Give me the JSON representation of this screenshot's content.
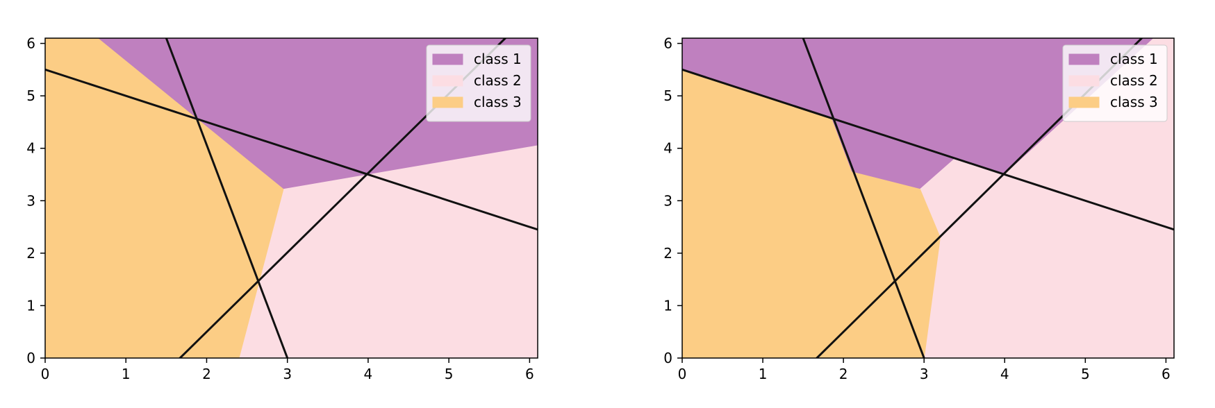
{
  "colors": {
    "class_1": "#bf80bf",
    "class_2": "#fcdde3",
    "class_3": "#fccd85",
    "line": "#111111"
  },
  "chart_data": [
    {
      "type": "area",
      "xlim": [
        0,
        6.1
      ],
      "ylim": [
        0,
        6.1
      ],
      "x_ticks": [
        "0",
        "1",
        "2",
        "3",
        "4",
        "5",
        "6"
      ],
      "y_ticks": [
        "0",
        "1",
        "2",
        "3",
        "4",
        "5",
        "6"
      ],
      "grid": false,
      "legend_position": "top-right",
      "legend": [
        "class 1",
        "class 2",
        "class 3"
      ],
      "regions": [
        {
          "name": "class 1",
          "polygon": [
            [
              0.65,
              6.1
            ],
            [
              6.1,
              6.1
            ],
            [
              6.1,
              4.05
            ],
            [
              2.95,
              3.22
            ]
          ]
        },
        {
          "name": "class 2",
          "polygon": [
            [
              2.95,
              3.22
            ],
            [
              6.1,
              4.05
            ],
            [
              6.1,
              0
            ],
            [
              2.4,
              0
            ]
          ]
        },
        {
          "name": "class 3",
          "polygon": [
            [
              0,
              0
            ],
            [
              0,
              6.1
            ],
            [
              0.65,
              6.1
            ],
            [
              2.95,
              3.22
            ],
            [
              2.4,
              0
            ]
          ]
        }
      ],
      "lines": [
        {
          "points": [
            [
              0,
              5.5
            ],
            [
              6.1,
              2.45
            ]
          ]
        },
        {
          "points": [
            [
              1.5,
              6.1
            ],
            [
              3.0,
              0
            ]
          ]
        },
        {
          "points": [
            [
              1.67,
              0
            ],
            [
              5.7,
              6.1
            ]
          ]
        }
      ]
    },
    {
      "type": "area",
      "xlim": [
        0,
        6.1
      ],
      "ylim": [
        0,
        6.1
      ],
      "x_ticks": [
        "0",
        "1",
        "2",
        "3",
        "4",
        "5",
        "6"
      ],
      "y_ticks": [
        "0",
        "1",
        "2",
        "3",
        "4",
        "5",
        "6"
      ],
      "grid": false,
      "legend_position": "top-right",
      "legend": [
        "class 1",
        "class 2",
        "class 3"
      ],
      "regions": [
        {
          "name": "class 1",
          "polygon": [
            [
              0,
              6.1
            ],
            [
              5.85,
              6.1
            ],
            [
              4.0,
              3.5
            ],
            [
              3.38,
              3.8
            ],
            [
              2.95,
              3.22
            ],
            [
              2.1,
              3.55
            ],
            [
              1.85,
              4.57
            ],
            [
              0,
              5.5
            ]
          ]
        },
        {
          "name": "class 2",
          "polygon": [
            [
              2.95,
              3.22
            ],
            [
              3.38,
              3.8
            ],
            [
              4.0,
              3.5
            ],
            [
              5.85,
              6.1
            ],
            [
              6.1,
              6.1
            ],
            [
              6.1,
              0
            ],
            [
              3.0,
              0
            ],
            [
              3.2,
              2.3
            ]
          ]
        },
        {
          "name": "class 3",
          "polygon": [
            [
              0,
              0
            ],
            [
              0,
              5.5
            ],
            [
              1.85,
              4.57
            ],
            [
              2.1,
              3.55
            ],
            [
              2.95,
              3.22
            ],
            [
              3.2,
              2.3
            ],
            [
              3.0,
              0
            ]
          ]
        }
      ],
      "lines": [
        {
          "points": [
            [
              0,
              5.5
            ],
            [
              6.1,
              2.45
            ]
          ]
        },
        {
          "points": [
            [
              1.5,
              6.1
            ],
            [
              3.0,
              0
            ]
          ]
        },
        {
          "points": [
            [
              1.67,
              0
            ],
            [
              5.7,
              6.1
            ]
          ]
        }
      ]
    }
  ]
}
